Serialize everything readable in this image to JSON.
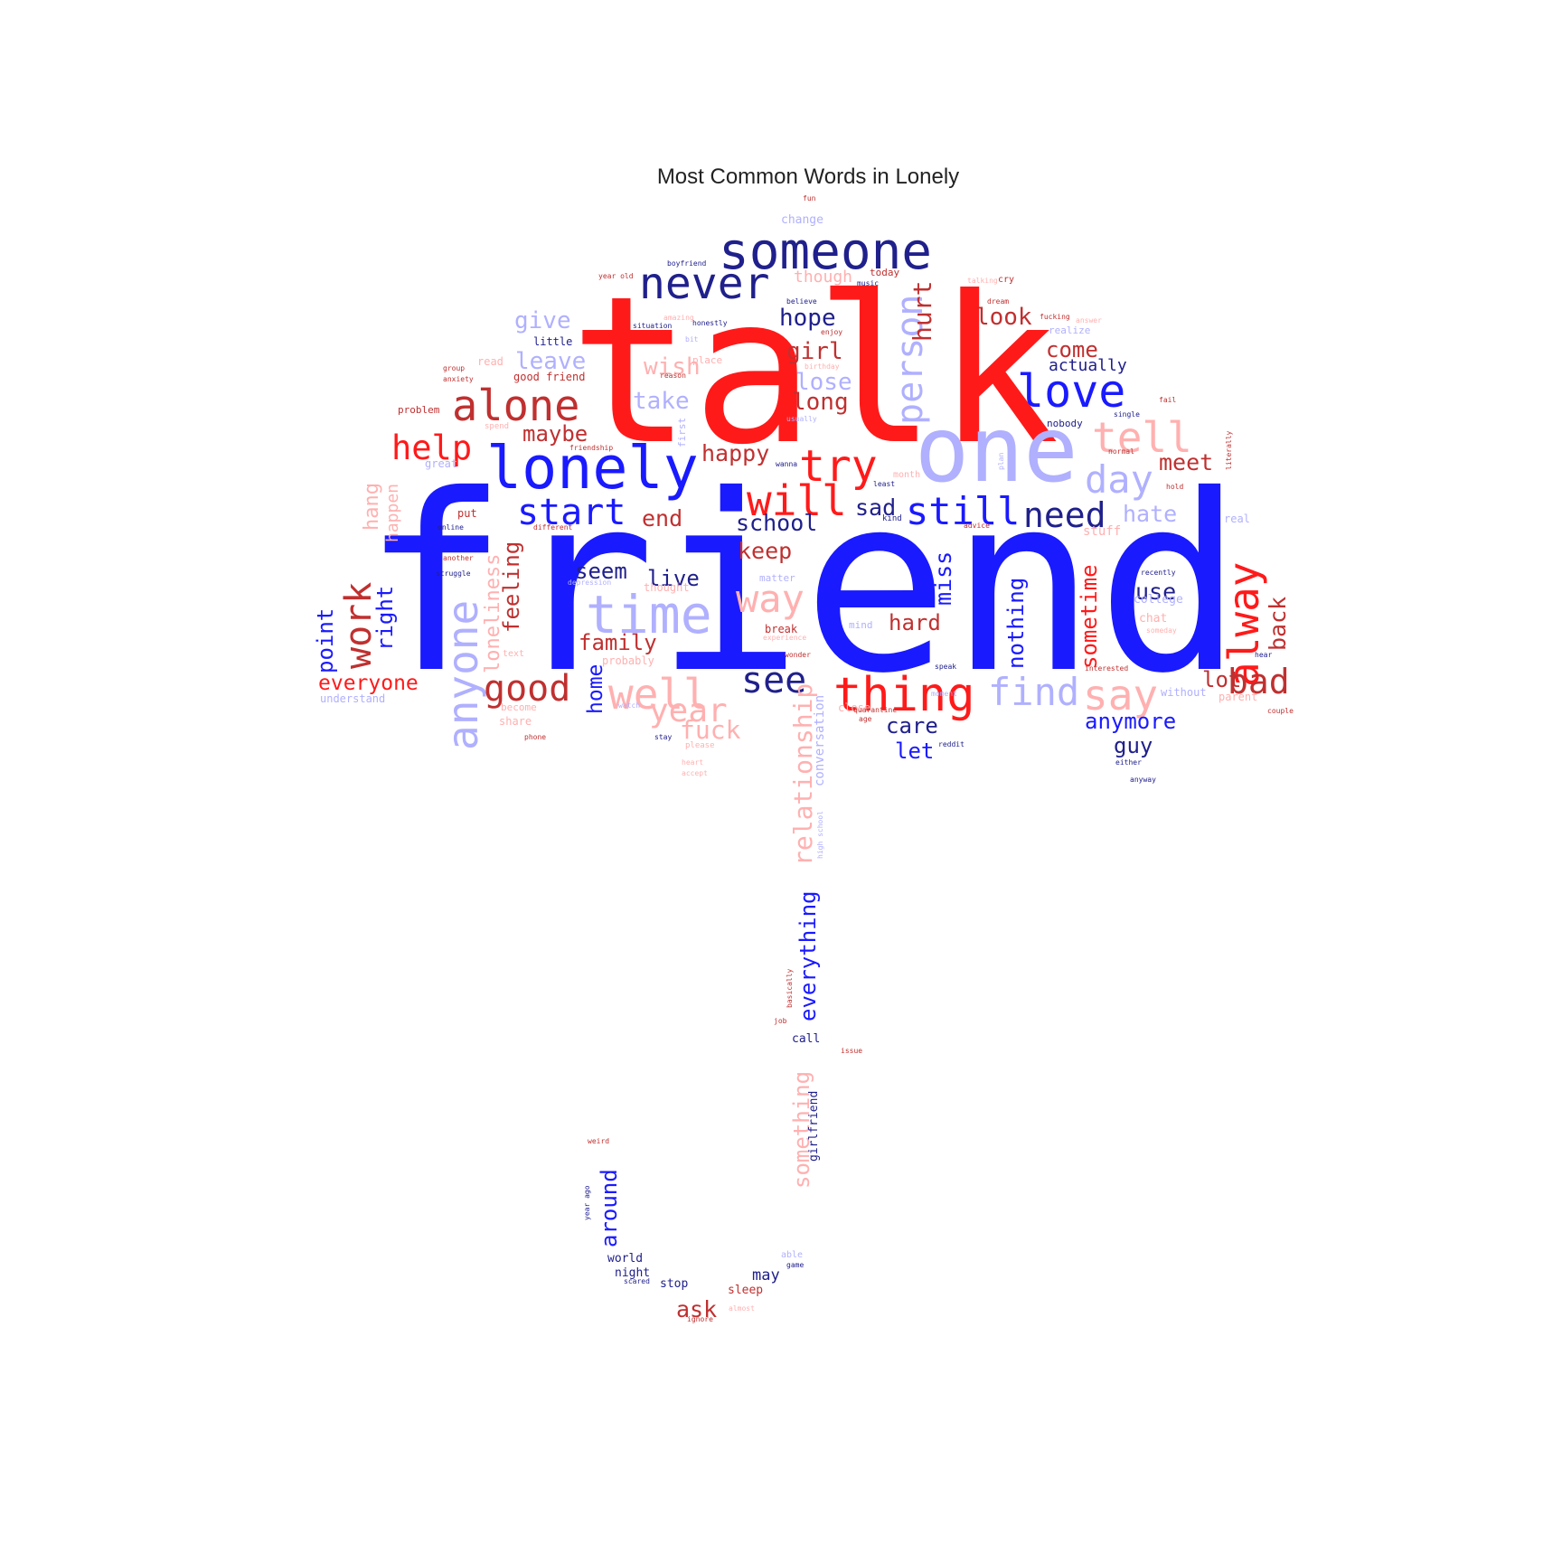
{
  "chart_data": {
    "type": "wordcloud",
    "title": "Most Common Words in Lonely",
    "shape": "umbrella",
    "palette": {
      "red": "#ff1a1a",
      "blue": "#1a1aff",
      "dark_red": "#c03030",
      "dark_blue": "#20208c",
      "light_blue": "#b0b0ff",
      "light_red": "#ffb0b0"
    },
    "words": [
      {
        "text": "friend",
        "weight": 100,
        "color": "blue"
      },
      {
        "text": "talk",
        "weight": 92,
        "color": "red"
      },
      {
        "text": "one",
        "weight": 48,
        "color": "light_blue"
      },
      {
        "text": "lonely",
        "weight": 38,
        "color": "blue"
      },
      {
        "text": "someone",
        "weight": 34,
        "color": "dark_blue"
      },
      {
        "text": "never",
        "weight": 30,
        "color": "dark_blue"
      },
      {
        "text": "time",
        "weight": 32,
        "color": "light_blue"
      },
      {
        "text": "alone",
        "weight": 30,
        "color": "dark_red"
      },
      {
        "text": "love",
        "weight": 32,
        "color": "blue"
      },
      {
        "text": "person",
        "weight": 26,
        "color": "light_blue"
      },
      {
        "text": "thing",
        "weight": 32,
        "color": "red"
      },
      {
        "text": "alway",
        "weight": 30,
        "color": "red"
      },
      {
        "text": "tell",
        "weight": 28,
        "color": "light_red"
      },
      {
        "text": "anyone",
        "weight": 30,
        "color": "light_blue"
      },
      {
        "text": "try",
        "weight": 30,
        "color": "red"
      },
      {
        "text": "will",
        "weight": 28,
        "color": "red"
      },
      {
        "text": "well",
        "weight": 28,
        "color": "light_red"
      },
      {
        "text": "way",
        "weight": 28,
        "color": "light_red"
      },
      {
        "text": "find",
        "weight": 30,
        "color": "light_blue"
      },
      {
        "text": "say",
        "weight": 30,
        "color": "light_red"
      },
      {
        "text": "start",
        "weight": 26,
        "color": "blue"
      },
      {
        "text": "still",
        "weight": 28,
        "color": "blue"
      },
      {
        "text": "need",
        "weight": 26,
        "color": "dark_blue"
      },
      {
        "text": "day",
        "weight": 28,
        "color": "light_blue"
      },
      {
        "text": "good",
        "weight": 26,
        "color": "dark_red"
      },
      {
        "text": "year",
        "weight": 26,
        "color": "light_red"
      },
      {
        "text": "see",
        "weight": 26,
        "color": "dark_blue"
      },
      {
        "text": "bad",
        "weight": 26,
        "color": "dark_red"
      },
      {
        "text": "work",
        "weight": 26,
        "color": "dark_red"
      },
      {
        "text": "help",
        "weight": 24,
        "color": "red"
      },
      {
        "text": "relationship",
        "weight": 20,
        "color": "light_red"
      },
      {
        "text": "everything",
        "weight": 18,
        "color": "blue"
      },
      {
        "text": "something",
        "weight": 18,
        "color": "light_red"
      },
      {
        "text": "fuck",
        "weight": 18,
        "color": "light_red"
      },
      {
        "text": "hurt",
        "weight": 18,
        "color": "dark_red"
      },
      {
        "text": "hope",
        "weight": 17,
        "color": "dark_blue"
      },
      {
        "text": "girl",
        "weight": 18,
        "color": "dark_red"
      },
      {
        "text": "give",
        "weight": 17,
        "color": "light_blue"
      },
      {
        "text": "look",
        "weight": 17,
        "color": "dark_red"
      },
      {
        "text": "long",
        "weight": 17,
        "color": "dark_red"
      },
      {
        "text": "leave",
        "weight": 17,
        "color": "light_blue"
      },
      {
        "text": "wish",
        "weight": 17,
        "color": "light_red"
      },
      {
        "text": "lose",
        "weight": 17,
        "color": "light_blue"
      },
      {
        "text": "take",
        "weight": 17,
        "color": "light_blue"
      },
      {
        "text": "maybe",
        "weight": 17,
        "color": "dark_red"
      },
      {
        "text": "come",
        "weight": 16,
        "color": "dark_red"
      },
      {
        "text": "happy",
        "weight": 17,
        "color": "dark_red"
      },
      {
        "text": "meet",
        "weight": 17,
        "color": "dark_red"
      },
      {
        "text": "hate",
        "weight": 17,
        "color": "light_blue"
      },
      {
        "text": "school",
        "weight": 17,
        "color": "dark_blue"
      },
      {
        "text": "end",
        "weight": 17,
        "color": "dark_red"
      },
      {
        "text": "sad",
        "weight": 17,
        "color": "dark_blue"
      },
      {
        "text": "keep",
        "weight": 17,
        "color": "dark_red"
      },
      {
        "text": "miss",
        "weight": 17,
        "color": "blue"
      },
      {
        "text": "nothing",
        "weight": 17,
        "color": "blue"
      },
      {
        "text": "sometime",
        "weight": 17,
        "color": "red"
      },
      {
        "text": "use",
        "weight": 16,
        "color": "dark_blue"
      },
      {
        "text": "back",
        "weight": 17,
        "color": "dark_red"
      },
      {
        "text": "seem",
        "weight": 16,
        "color": "dark_blue"
      },
      {
        "text": "live",
        "weight": 16,
        "color": "dark_blue"
      },
      {
        "text": "feeling",
        "weight": 16,
        "color": "dark_red"
      },
      {
        "text": "loneliness",
        "weight": 16,
        "color": "light_red"
      },
      {
        "text": "family",
        "weight": 16,
        "color": "dark_red"
      },
      {
        "text": "hard",
        "weight": 16,
        "color": "dark_red"
      },
      {
        "text": "home",
        "weight": 15,
        "color": "blue"
      },
      {
        "text": "right",
        "weight": 16,
        "color": "blue"
      },
      {
        "text": "point",
        "weight": 16,
        "color": "blue"
      },
      {
        "text": "hang",
        "weight": 15,
        "color": "light_red"
      },
      {
        "text": "happen",
        "weight": 13,
        "color": "light_red"
      },
      {
        "text": "everyone",
        "weight": 15,
        "color": "red"
      },
      {
        "text": "care",
        "weight": 16,
        "color": "dark_blue"
      },
      {
        "text": "let",
        "weight": 16,
        "color": "blue"
      },
      {
        "text": "anymore",
        "weight": 16,
        "color": "blue"
      },
      {
        "text": "guy",
        "weight": 16,
        "color": "dark_blue"
      },
      {
        "text": "lot",
        "weight": 16,
        "color": "dark_red"
      },
      {
        "text": "around",
        "weight": 16,
        "color": "blue"
      },
      {
        "text": "ask",
        "weight": 17,
        "color": "dark_red"
      },
      {
        "text": "actually",
        "weight": 12,
        "color": "dark_blue"
      },
      {
        "text": "stuff",
        "weight": 10,
        "color": "light_red"
      },
      {
        "text": "conversation",
        "weight": 10,
        "color": "light_blue"
      },
      {
        "text": "girlfriend",
        "weight": 9,
        "color": "dark_blue"
      },
      {
        "text": "may",
        "weight": 11,
        "color": "dark_blue"
      },
      {
        "text": "world",
        "weight": 9,
        "color": "dark_blue"
      },
      {
        "text": "night",
        "weight": 9,
        "color": "dark_blue"
      },
      {
        "text": "stop",
        "weight": 9,
        "color": "dark_blue"
      },
      {
        "text": "sleep",
        "weight": 9,
        "color": "dark_red"
      },
      {
        "text": "call",
        "weight": 9,
        "color": "dark_blue"
      },
      {
        "text": "change",
        "weight": 9,
        "color": "light_blue"
      },
      {
        "text": "though",
        "weight": 12,
        "color": "light_red"
      },
      {
        "text": "little",
        "weight": 8,
        "color": "dark_blue"
      },
      {
        "text": "good friend",
        "weight": 8,
        "color": "dark_red"
      },
      {
        "text": "read",
        "weight": 8,
        "color": "light_red"
      },
      {
        "text": "great",
        "weight": 8,
        "color": "light_blue"
      },
      {
        "text": "put",
        "weight": 8,
        "color": "dark_red"
      },
      {
        "text": "realize",
        "weight": 8,
        "color": "light_blue"
      },
      {
        "text": "nobody",
        "weight": 7,
        "color": "dark_blue"
      },
      {
        "text": "college",
        "weight": 9,
        "color": "light_blue"
      },
      {
        "text": "chat",
        "weight": 8,
        "color": "light_red"
      },
      {
        "text": "real",
        "weight": 8,
        "color": "light_blue"
      },
      {
        "text": "parent",
        "weight": 8,
        "color": "light_red"
      },
      {
        "text": "without",
        "weight": 8,
        "color": "light_blue"
      },
      {
        "text": "break",
        "weight": 7,
        "color": "dark_red"
      },
      {
        "text": "mind",
        "weight": 7,
        "color": "light_blue"
      },
      {
        "text": "probably",
        "weight": 7,
        "color": "light_red"
      },
      {
        "text": "thought",
        "weight": 7,
        "color": "light_red"
      },
      {
        "text": "matter",
        "weight": 7,
        "color": "light_blue"
      },
      {
        "text": "understand",
        "weight": 7,
        "color": "light_blue"
      },
      {
        "text": "share",
        "weight": 7,
        "color": "light_red"
      },
      {
        "text": "close",
        "weight": 7,
        "color": "light_red"
      },
      {
        "text": "today",
        "weight": 7,
        "color": "dark_red"
      },
      {
        "text": "boyfriend",
        "weight": 6,
        "color": "dark_blue"
      },
      {
        "text": "year old",
        "weight": 6,
        "color": "dark_red"
      },
      {
        "text": "believe",
        "weight": 6,
        "color": "dark_blue"
      },
      {
        "text": "fun",
        "weight": 6,
        "color": "dark_red"
      },
      {
        "text": "first",
        "weight": 7,
        "color": "light_blue"
      },
      {
        "text": "problem",
        "weight": 7,
        "color": "dark_red"
      },
      {
        "text": "different",
        "weight": 6,
        "color": "dark_red"
      },
      {
        "text": "struggle",
        "weight": 6,
        "color": "dark_blue"
      },
      {
        "text": "online",
        "weight": 6,
        "color": "dark_blue"
      },
      {
        "text": "phone",
        "weight": 6,
        "color": "dark_red"
      },
      {
        "text": "please",
        "weight": 6,
        "color": "light_red"
      },
      {
        "text": "reddit",
        "weight": 6,
        "color": "dark_blue"
      },
      {
        "text": "advice",
        "weight": 6,
        "color": "dark_red"
      },
      {
        "text": "situation",
        "weight": 6,
        "color": "dark_blue"
      },
      {
        "text": "honestly",
        "weight": 6,
        "color": "dark_blue"
      },
      {
        "text": "place",
        "weight": 7,
        "color": "light_red"
      },
      {
        "text": "reason",
        "weight": 6,
        "color": "dark_red"
      },
      {
        "text": "spend",
        "weight": 6,
        "color": "light_red"
      },
      {
        "text": "friendship",
        "weight": 6,
        "color": "dark_red"
      },
      {
        "text": "birthday",
        "weight": 6,
        "color": "light_red"
      },
      {
        "text": "usually",
        "weight": 6,
        "color": "light_blue"
      },
      {
        "text": "single",
        "weight": 6,
        "color": "dark_blue"
      },
      {
        "text": "literally",
        "weight": 6,
        "color": "dark_red"
      },
      {
        "text": "month",
        "weight": 6,
        "color": "light_red"
      },
      {
        "text": "kind",
        "weight": 6,
        "color": "dark_blue"
      },
      {
        "text": "recently",
        "weight": 6,
        "color": "dark_blue"
      },
      {
        "text": "someday",
        "weight": 6,
        "color": "light_red"
      },
      {
        "text": "quarantine",
        "weight": 6,
        "color": "dark_red"
      },
      {
        "text": "experience",
        "weight": 6,
        "color": "light_red"
      },
      {
        "text": "wonder",
        "weight": 6,
        "color": "dark_red"
      },
      {
        "text": "high school",
        "weight": 6,
        "color": "light_blue"
      },
      {
        "text": "basically",
        "weight": 6,
        "color": "dark_red"
      },
      {
        "text": "job",
        "weight": 6,
        "color": "dark_red"
      },
      {
        "text": "issue",
        "weight": 6,
        "color": "dark_red"
      },
      {
        "text": "weird",
        "weight": 6,
        "color": "dark_red"
      },
      {
        "text": "year ago",
        "weight": 6,
        "color": "dark_blue"
      },
      {
        "text": "scared",
        "weight": 6,
        "color": "dark_blue"
      },
      {
        "text": "able",
        "weight": 6,
        "color": "light_blue"
      },
      {
        "text": "game",
        "weight": 6,
        "color": "dark_blue"
      },
      {
        "text": "ignore",
        "weight": 6,
        "color": "dark_red"
      },
      {
        "text": "almost",
        "weight": 6,
        "color": "light_red"
      },
      {
        "text": "depression",
        "weight": 6,
        "color": "light_blue"
      },
      {
        "text": "couple",
        "weight": 6,
        "color": "dark_red"
      },
      {
        "text": "anyway",
        "weight": 6,
        "color": "dark_blue"
      },
      {
        "text": "either",
        "weight": 6,
        "color": "dark_blue"
      },
      {
        "text": "hear",
        "weight": 6,
        "color": "dark_blue"
      },
      {
        "text": "music",
        "weight": 6,
        "color": "dark_blue"
      },
      {
        "text": "amazing",
        "weight": 6,
        "color": "light_red"
      },
      {
        "text": "text",
        "weight": 6,
        "color": "light_red"
      },
      {
        "text": "speak",
        "weight": 6,
        "color": "dark_blue"
      },
      {
        "text": "stay",
        "weight": 6,
        "color": "dark_blue"
      },
      {
        "text": "accept",
        "weight": 6,
        "color": "light_red"
      },
      {
        "text": "heart",
        "weight": 6,
        "color": "light_red"
      },
      {
        "text": "watch",
        "weight": 6,
        "color": "light_blue"
      },
      {
        "text": "become",
        "weight": 6,
        "color": "light_red"
      },
      {
        "text": "anxiety",
        "weight": 6,
        "color": "dark_red"
      },
      {
        "text": "group",
        "weight": 6,
        "color": "dark_red"
      },
      {
        "text": "interested",
        "weight": 6,
        "color": "dark_red"
      },
      {
        "text": "another",
        "weight": 6,
        "color": "dark_red"
      },
      {
        "text": "dream",
        "weight": 6,
        "color": "dark_red"
      },
      {
        "text": "fucking",
        "weight": 6,
        "color": "dark_red"
      },
      {
        "text": "answer",
        "weight": 6,
        "color": "light_red"
      },
      {
        "text": "enjoy",
        "weight": 6,
        "color": "dark_red"
      },
      {
        "text": "normal",
        "weight": 6,
        "color": "dark_red"
      },
      {
        "text": "fail",
        "weight": 6,
        "color": "dark_red"
      },
      {
        "text": "wanna",
        "weight": 6,
        "color": "dark_blue"
      },
      {
        "text": "least",
        "weight": 6,
        "color": "dark_blue"
      },
      {
        "text": "moment",
        "weight": 6,
        "color": "light_blue"
      },
      {
        "text": "plan",
        "weight": 6,
        "color": "light_blue"
      },
      {
        "text": "cry",
        "weight": 6,
        "color": "dark_red"
      },
      {
        "text": "talking",
        "weight": 6,
        "color": "light_red"
      },
      {
        "text": "bit",
        "weight": 6,
        "color": "light_blue"
      },
      {
        "text": "hold",
        "weight": 6,
        "color": "dark_red"
      },
      {
        "text": "age",
        "weight": 6,
        "color": "dark_red"
      }
    ]
  }
}
